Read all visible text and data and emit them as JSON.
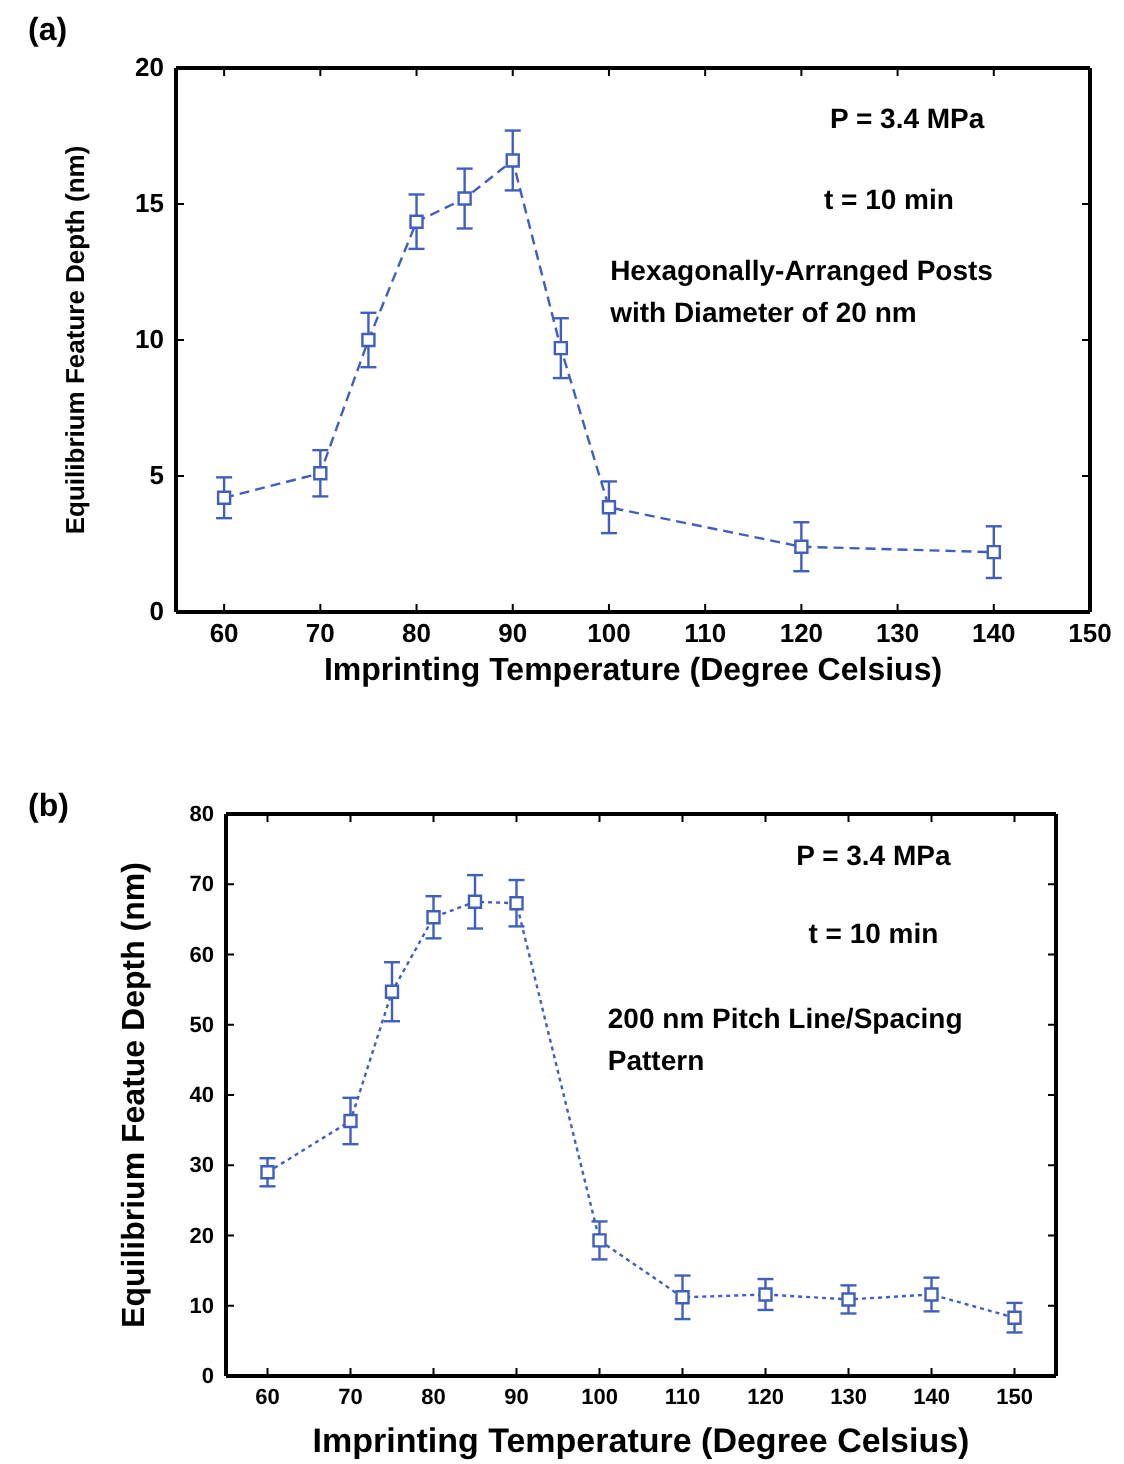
{
  "chart_data": [
    {
      "type": "line",
      "title": "(a)",
      "xlabel": "Imprinting Temperature (Degree Celsius)",
      "ylabel": "Equilibrium Feature Depth (nm)",
      "x": [
        60,
        70,
        75,
        80,
        85,
        90,
        95,
        100,
        120,
        140
      ],
      "series": [
        {
          "color": "#3f5fbf",
          "values": [
            4.2,
            5.1,
            10.0,
            14.35,
            15.2,
            16.6,
            9.7,
            3.85,
            2.4,
            2.2
          ],
          "errors": [
            0.75,
            0.85,
            1.0,
            1.0,
            1.1,
            1.1,
            1.1,
            0.95,
            0.9,
            0.95
          ]
        }
      ],
      "xlim": [
        55,
        150
      ],
      "xticks": [
        60,
        70,
        80,
        90,
        100,
        110,
        120,
        130,
        140,
        150
      ],
      "ylim": [
        0,
        20
      ],
      "yticks": [
        0,
        5,
        10,
        15,
        20
      ],
      "marker": "square",
      "line_style": "dashed",
      "grid": false,
      "annotations": [
        "P = 3.4 MPa",
        "t = 10 min",
        "Hexagonally-Arranged Posts\nwith Diameter of 20 nm"
      ]
    },
    {
      "type": "line",
      "title": "(b)",
      "xlabel": "Imprinting Temperature (Degree Celsius)",
      "ylabel": "Equilibrium Featue Depth (nm)",
      "x": [
        60,
        70,
        75,
        80,
        85,
        90,
        100,
        110,
        120,
        130,
        140,
        150
      ],
      "series": [
        {
          "color": "#3f5fbf",
          "values": [
            29,
            36.3,
            54.7,
            65.3,
            67.5,
            67.3,
            19.3,
            11.2,
            11.6,
            10.9,
            11.6,
            8.3
          ],
          "errors": [
            2,
            3.3,
            4.2,
            3,
            3.8,
            3.3,
            2.7,
            3.1,
            2.2,
            2,
            2.4,
            2.1
          ]
        }
      ],
      "xlim": [
        55,
        155
      ],
      "xticks": [
        60,
        70,
        80,
        90,
        100,
        110,
        120,
        130,
        140,
        150
      ],
      "ylim": [
        0,
        80
      ],
      "yticks": [
        0,
        10,
        20,
        30,
        40,
        50,
        60,
        70,
        80
      ],
      "marker": "square",
      "line_style": "dotted",
      "grid": false,
      "annotations": [
        "P = 3.4 MPa",
        "t = 10 min",
        "200 nm Pitch Line/Spacing\nPattern"
      ]
    }
  ]
}
